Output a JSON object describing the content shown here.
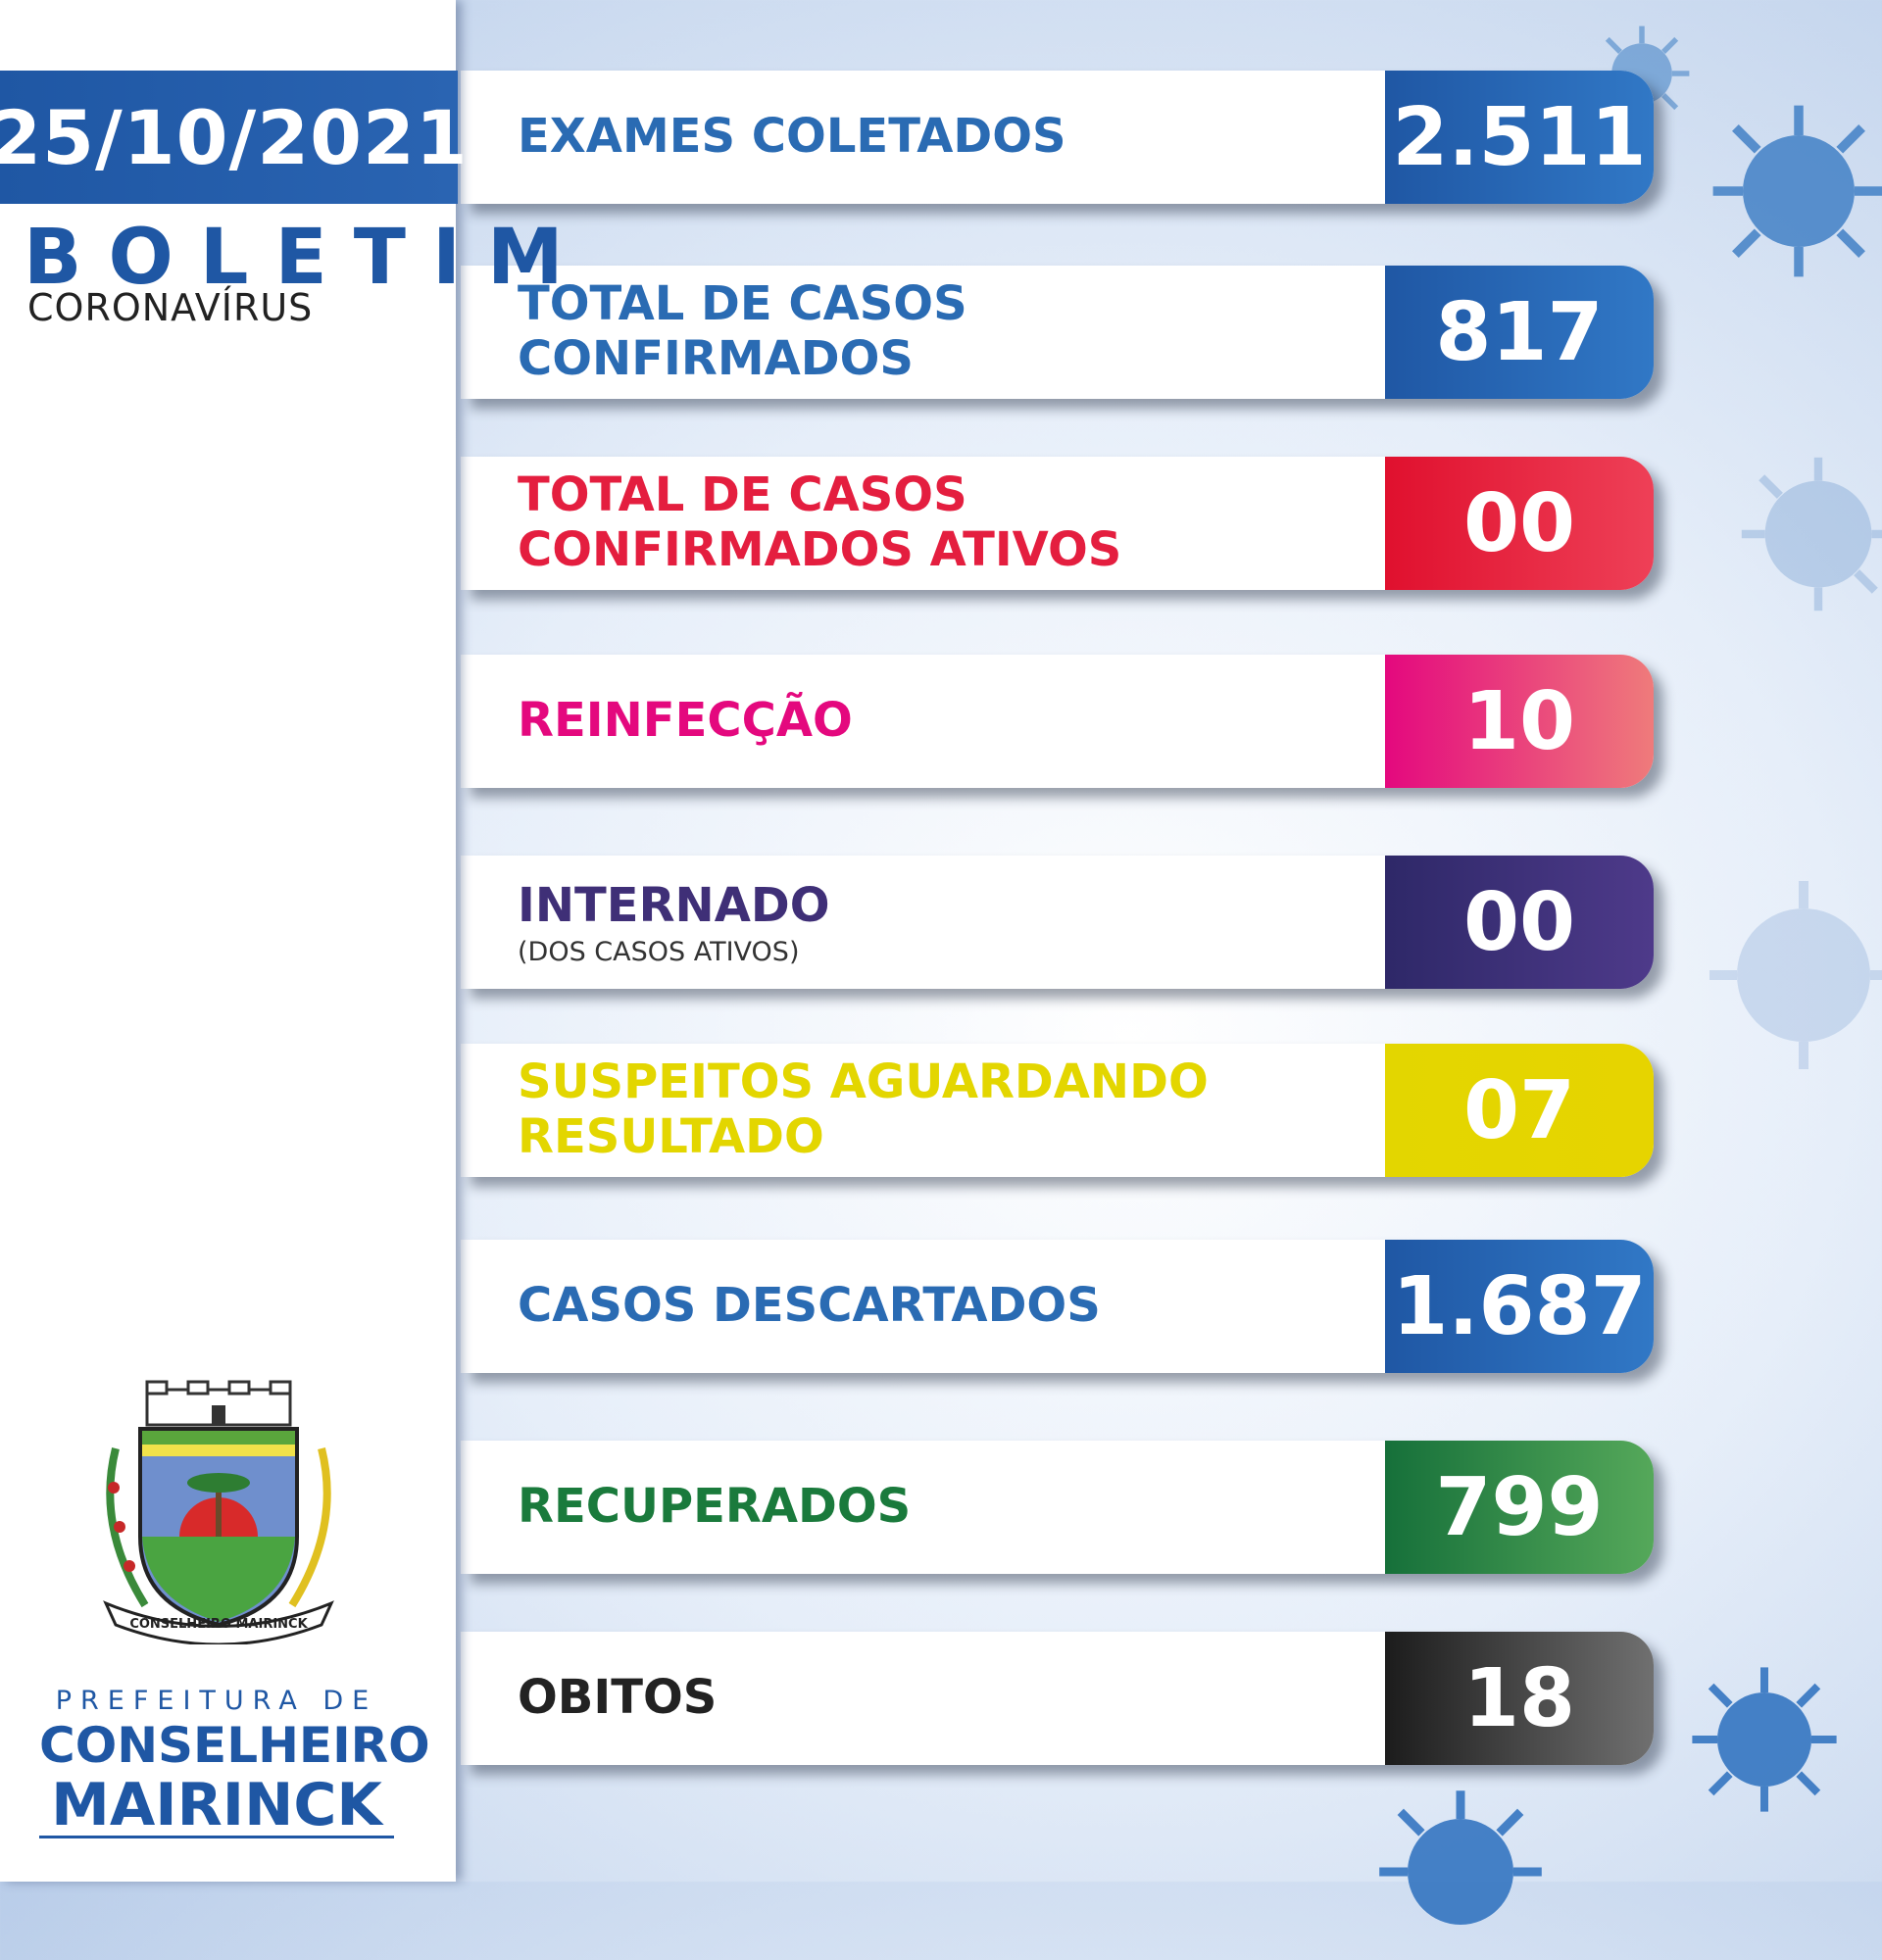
{
  "sidebar": {
    "date": "25/10/2021",
    "title": "BOLETIM",
    "subtitle": "CORONAVÍRUS",
    "crest_text": "CONSELHEIRO MAIRINCK",
    "prefeitura": "PREFEITURA DE",
    "city_line1": "CONSELHEIRO",
    "city_line2": "MAIRINCK"
  },
  "stats": [
    {
      "label": "EXAMES COLETADOS",
      "value": "2.511",
      "color": "#2a6bb3"
    },
    {
      "label": "TOTAL DE CASOS CONFIRMADOS",
      "value": "817",
      "color": "#2a6bb3"
    },
    {
      "label": "TOTAL DE CASOS",
      "label2": "CONFIRMADOS ATIVOS",
      "value": "00",
      "color": "#e41e3f"
    },
    {
      "label": "REINFECÇÃO",
      "value": "10",
      "color": "#e4087e"
    },
    {
      "label": "INTERNADO",
      "sublabel": "(DOS CASOS ATIVOS)",
      "value": "00",
      "color": "#3f2f77"
    },
    {
      "label": "SUSPEITOS AGUARDANDO",
      "label2": "RESULTADO",
      "value": "07",
      "color": "#e3d600"
    },
    {
      "label": "CASOS DESCARTADOS",
      "value": "1.687",
      "color": "#2a6bb3"
    },
    {
      "label": "RECUPERADOS",
      "value": "799",
      "color": "#1a7a3c"
    },
    {
      "label": "OBITOS",
      "value": "18",
      "color": "#222222"
    }
  ]
}
